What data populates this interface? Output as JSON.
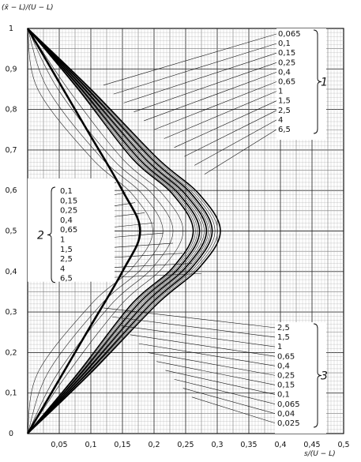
{
  "chart_data": {
    "type": "line",
    "title": "",
    "xlabel": "s/(U − L)",
    "ylabel": "(x̄ − L)/(U − L)",
    "xlim": [
      0,
      0.5
    ],
    "ylim": [
      0,
      1
    ],
    "x_ticks": [
      "0,05",
      "0,1",
      "0,15",
      "0,2",
      "0,25",
      "0,3",
      "0,35",
      "0,4",
      "0,45",
      "0,5"
    ],
    "y_ticks": [
      "0",
      "0,1",
      "0,2",
      "0,3",
      "0,4",
      "0,5",
      "0,6",
      "0,7",
      "0,8",
      "0,9",
      "1"
    ],
    "grid": true,
    "series": [
      {
        "values": [
          [
            0,
            1
          ],
          [
            0.08,
            0.85
          ],
          [
            0.165,
            0.68
          ],
          [
            0.23,
            0.59
          ],
          [
            0.262,
            0.5
          ],
          [
            0.23,
            0.41
          ],
          [
            0.165,
            0.32
          ],
          [
            0.08,
            0.15
          ],
          [
            0,
            0
          ]
        ]
      },
      {
        "values": [
          [
            0,
            1
          ],
          [
            0.085,
            0.85
          ],
          [
            0.175,
            0.68
          ],
          [
            0.24,
            0.59
          ],
          [
            0.272,
            0.5
          ],
          [
            0.24,
            0.41
          ],
          [
            0.175,
            0.32
          ],
          [
            0.085,
            0.15
          ],
          [
            0,
            0
          ]
        ]
      },
      {
        "values": [
          [
            0,
            1
          ],
          [
            0.09,
            0.85
          ],
          [
            0.185,
            0.68
          ],
          [
            0.25,
            0.59
          ],
          [
            0.283,
            0.5
          ],
          [
            0.25,
            0.41
          ],
          [
            0.185,
            0.32
          ],
          [
            0.09,
            0.15
          ],
          [
            0,
            0
          ]
        ]
      },
      {
        "values": [
          [
            0,
            1
          ],
          [
            0.095,
            0.85
          ],
          [
            0.195,
            0.68
          ],
          [
            0.26,
            0.59
          ],
          [
            0.292,
            0.5
          ],
          [
            0.26,
            0.41
          ],
          [
            0.195,
            0.32
          ],
          [
            0.095,
            0.15
          ],
          [
            0,
            0
          ]
        ]
      },
      {
        "values": [
          [
            0,
            1
          ],
          [
            0.1,
            0.85
          ],
          [
            0.205,
            0.68
          ],
          [
            0.272,
            0.59
          ],
          [
            0.305,
            0.5
          ],
          [
            0.272,
            0.41
          ],
          [
            0.205,
            0.32
          ],
          [
            0.1,
            0.15
          ],
          [
            0,
            0
          ]
        ]
      }
    ],
    "inner_boundary": {
      "values": [
        [
          0,
          1
        ],
        [
          0.09,
          0.76
        ],
        [
          0.15,
          0.6
        ],
        [
          0.178,
          0.5
        ],
        [
          0.15,
          0.4
        ],
        [
          0.09,
          0.24
        ],
        [
          0,
          0
        ]
      ]
    },
    "groups": [
      {
        "id": "1",
        "labels": [
          "0,065",
          "0,1",
          "0,15",
          "0,25",
          "0,4",
          "0,65",
          "1",
          "1,5",
          "2,5",
          "4",
          "6,5"
        ]
      },
      {
        "id": "2",
        "labels": [
          "0,1",
          "0,15",
          "0,25",
          "0,4",
          "0,65",
          "1",
          "1,5",
          "2,5",
          "4",
          "6,5"
        ]
      },
      {
        "id": "3",
        "labels": [
          "2,5",
          "1,5",
          "1",
          "0,65",
          "0,4",
          "0,25",
          "0,15",
          "0,1",
          "0,065",
          "0,04",
          "0,025"
        ]
      }
    ]
  }
}
